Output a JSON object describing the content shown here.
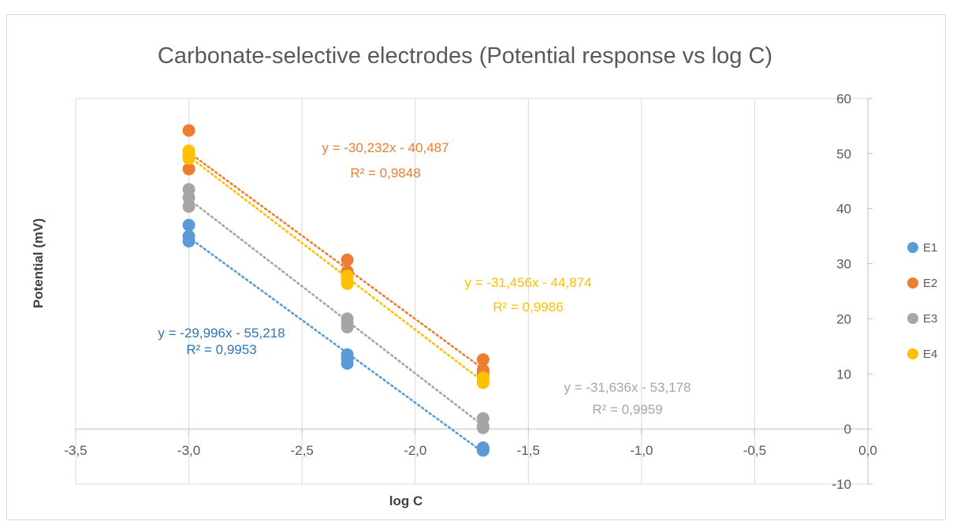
{
  "chart_data": {
    "type": "scatter",
    "title": "Carbonate-selective electrodes (Potential response vs log C)",
    "xlabel": "log C",
    "ylabel": "Potential (mV)",
    "xlim": [
      -3.5,
      0.0
    ],
    "ylim": [
      -10,
      60
    ],
    "x_ticks": [
      -3.5,
      -3.0,
      -2.5,
      -2.0,
      -1.5,
      -1.0,
      -0.5,
      0.0
    ],
    "x_tick_labels": [
      "-3,5",
      "-3,0",
      "-2,5",
      "-2,0",
      "-1,5",
      "-1,0",
      "-0,5",
      "0,0"
    ],
    "y_ticks": [
      -10,
      0,
      10,
      20,
      30,
      40,
      50,
      60
    ],
    "y_tick_labels": [
      "-10",
      "0",
      "10",
      "20",
      "30",
      "40",
      "50",
      "60"
    ],
    "vertical_gridlines": true,
    "horizontal_gridlines": false,
    "y_axis_position": "right",
    "legend_position": "right",
    "series": [
      {
        "name": "E1",
        "color": "#5B9BD5",
        "label_color": "#2E75B6",
        "points": [
          [
            -3.0,
            37.0
          ],
          [
            -3.0,
            35.0
          ],
          [
            -3.0,
            34.1
          ],
          [
            -2.3,
            13.5
          ],
          [
            -2.3,
            12.8
          ],
          [
            -2.3,
            11.9
          ],
          [
            -1.7,
            -3.4
          ],
          [
            -1.7,
            -3.6
          ],
          [
            -1.7,
            -3.9
          ]
        ],
        "trendline": {
          "slope": -29.996,
          "intercept": -55.218,
          "equation": "y = -29,996x - 55,218",
          "r2": "R² = 0,9953"
        }
      },
      {
        "name": "E2",
        "color": "#ED7D31",
        "label_color": "#ED7D31",
        "points": [
          [
            -3.0,
            54.2
          ],
          [
            -3.0,
            49.6
          ],
          [
            -3.0,
            47.2
          ],
          [
            -2.3,
            30.7
          ],
          [
            -2.3,
            28.6
          ],
          [
            -2.3,
            27.9
          ],
          [
            -1.7,
            12.6
          ],
          [
            -1.7,
            10.7
          ],
          [
            -1.7,
            10.0
          ]
        ],
        "trendline": {
          "slope": -30.232,
          "intercept": -40.487,
          "equation": "y = -30,232x - 40,487",
          "r2": "R² = 0,9848"
        }
      },
      {
        "name": "E3",
        "color": "#A5A5A5",
        "label_color": "#A5A5A5",
        "points": [
          [
            -3.0,
            43.5
          ],
          [
            -3.0,
            42.0
          ],
          [
            -3.0,
            40.4
          ],
          [
            -2.3,
            20.0
          ],
          [
            -2.3,
            19.2
          ],
          [
            -2.3,
            18.5
          ],
          [
            -1.7,
            1.9
          ],
          [
            -1.7,
            0.5
          ],
          [
            -1.7,
            0.2
          ]
        ],
        "trendline": {
          "slope": -31.636,
          "intercept": -53.178,
          "equation": "y = -31,636x - 53,178",
          "r2": "R² = 0,9959"
        }
      },
      {
        "name": "E4",
        "color": "#FFC000",
        "label_color": "#FFC000",
        "points": [
          [
            -3.0,
            50.5
          ],
          [
            -3.0,
            49.8
          ],
          [
            -3.0,
            49.1
          ],
          [
            -2.3,
            27.8
          ],
          [
            -2.3,
            27.0
          ],
          [
            -2.3,
            26.4
          ],
          [
            -1.7,
            9.3
          ],
          [
            -1.7,
            8.7
          ],
          [
            -1.7,
            8.4
          ]
        ],
        "trendline": {
          "slope": -31.456,
          "intercept": -44.874,
          "equation": "y = -31,456x - 44,874",
          "r2": "R² = 0,9986"
        }
      }
    ]
  }
}
